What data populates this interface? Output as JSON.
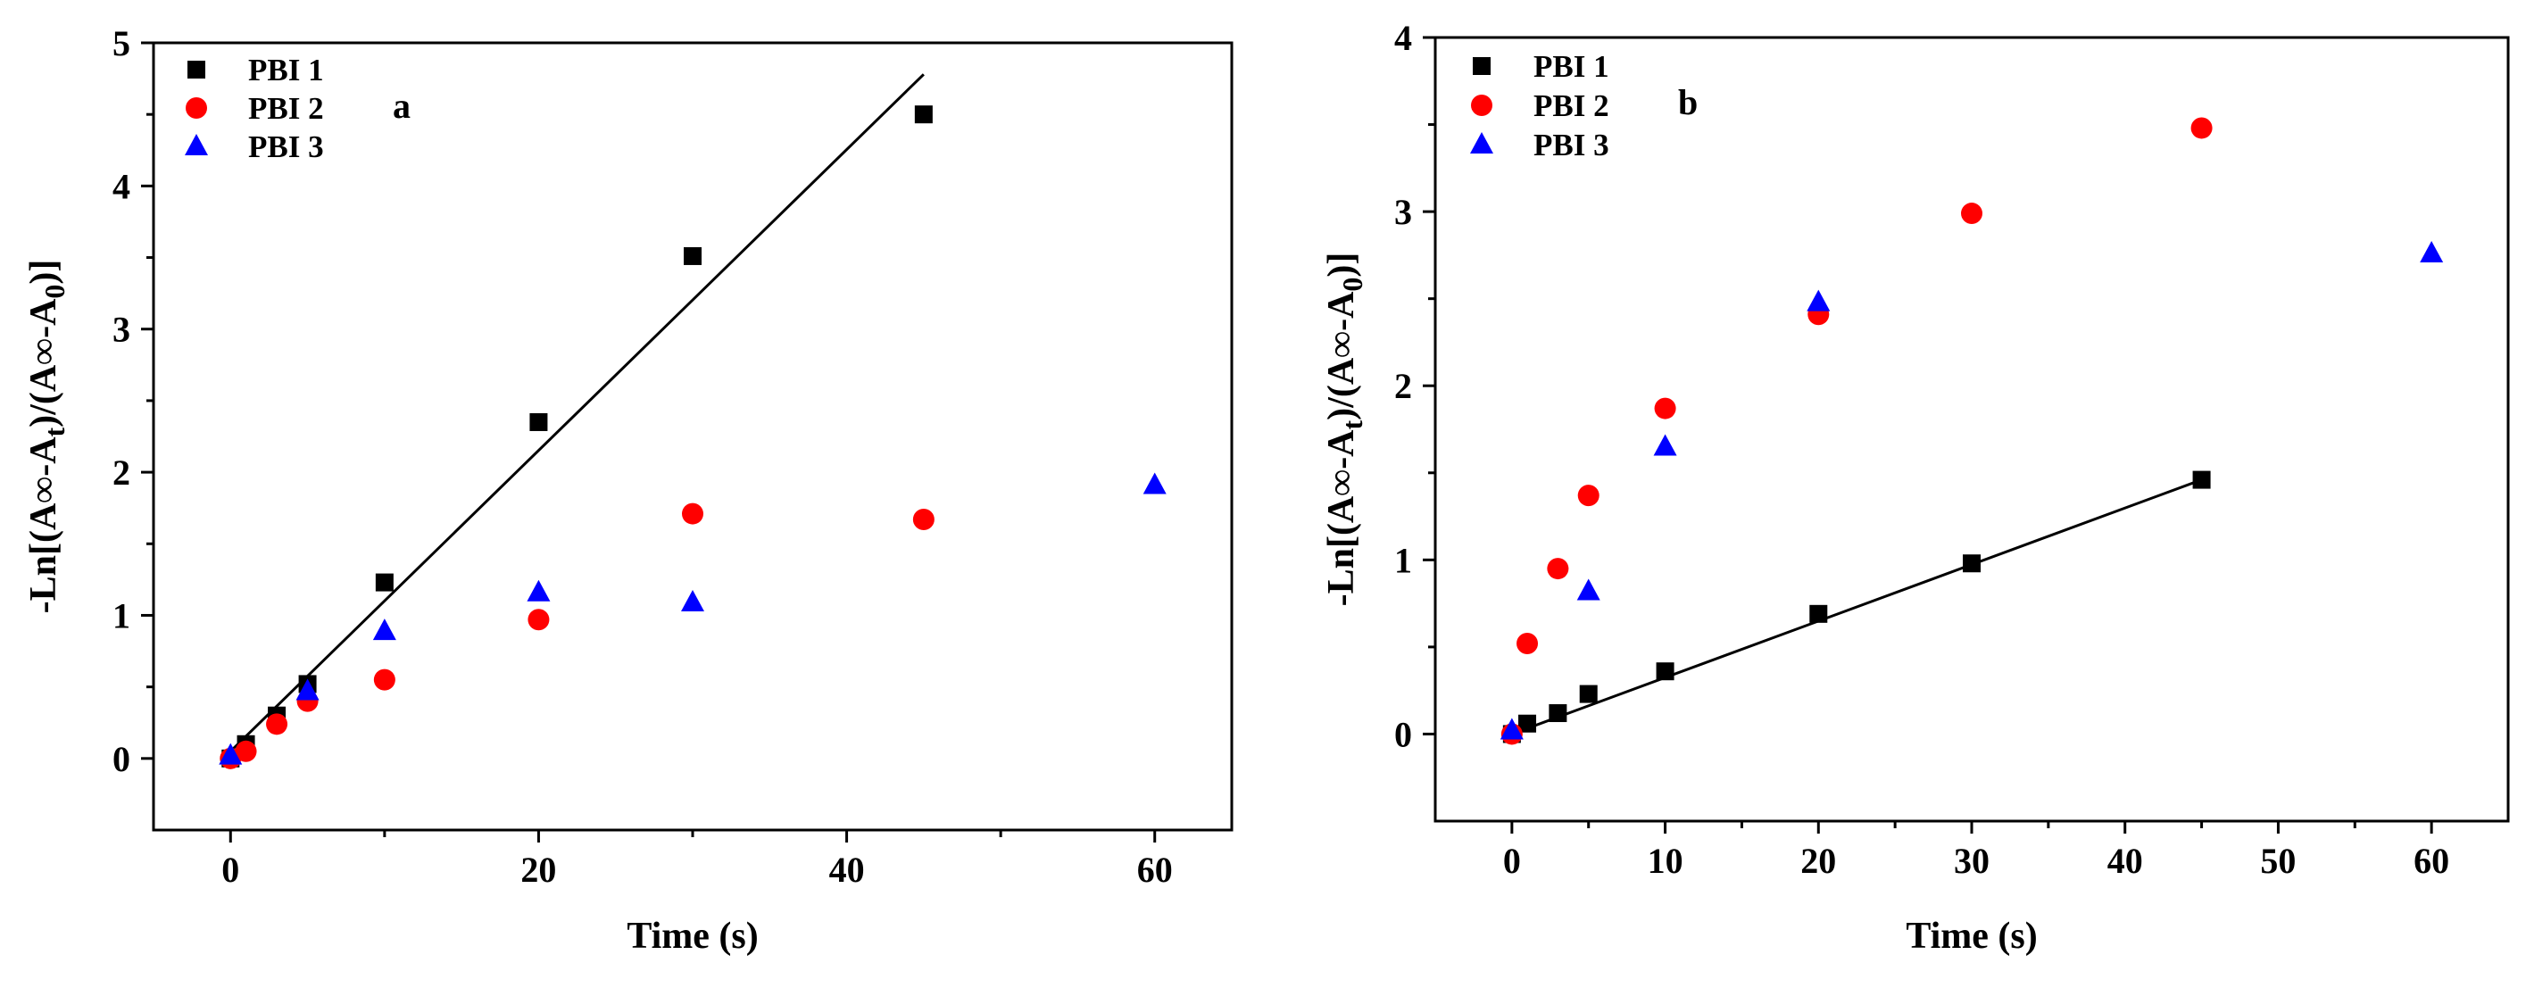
{
  "colors": {
    "PBI 1": "#000000",
    "PBI 2": "#ff0000",
    "PBI 3": "#0000ff",
    "axis": "#000000",
    "fit": "#000000"
  },
  "chart_data": [
    {
      "panel_label": "a",
      "type": "scatter",
      "title": "",
      "xlabel": "Time (s)",
      "ylabel": "-Ln[(A∞-At)/(A∞-A0)]",
      "ylabel_parts": {
        "pre": "-Ln[(A∞-A",
        "sub1": "t",
        "mid": ")/(A∞-A",
        "sub2": "0",
        "post": ")]"
      },
      "xlim": [
        -5,
        65
      ],
      "ylim": [
        -0.5,
        5
      ],
      "xticks": [
        0,
        20,
        40,
        60
      ],
      "xticks_minor": [
        10,
        30,
        50
      ],
      "yticks": [
        0,
        1,
        2,
        3,
        4,
        5
      ],
      "yticks_minor": [
        0.5,
        1.5,
        2.5,
        3.5,
        4.5
      ],
      "legend": [
        "PBI 1",
        "PBI 2",
        "PBI 3"
      ],
      "legend_position": "top-left",
      "series": [
        {
          "name": "PBI 1",
          "marker": "square",
          "x": [
            0,
            1,
            3,
            5,
            10,
            20,
            30,
            45
          ],
          "y": [
            0,
            0.1,
            0.3,
            0.52,
            1.23,
            2.35,
            3.51,
            4.5
          ]
        },
        {
          "name": "PBI 2",
          "marker": "circle",
          "x": [
            0,
            1,
            3,
            5,
            10,
            20,
            30,
            45
          ],
          "y": [
            0,
            0.05,
            0.24,
            0.4,
            0.55,
            0.97,
            1.71,
            1.67
          ]
        },
        {
          "name": "PBI 3",
          "marker": "triangle",
          "x": [
            0,
            5,
            10,
            20,
            30,
            60
          ],
          "y": [
            0.02,
            0.47,
            0.89,
            1.16,
            1.09,
            1.91
          ]
        }
      ],
      "fit_lines": [
        {
          "series": "PBI 1",
          "x": [
            0,
            45
          ],
          "y": [
            0.05,
            4.78
          ]
        }
      ]
    },
    {
      "panel_label": "b",
      "type": "scatter",
      "title": "",
      "xlabel": "Time (s)",
      "ylabel": "-Ln[(A∞-At)/(A∞-A0)]",
      "ylabel_parts": {
        "pre": "-Ln[(A∞-A",
        "sub1": "t",
        "mid": ")/(A∞-A",
        "sub2": "0",
        "post": ")]"
      },
      "xlim": [
        -5,
        65
      ],
      "ylim": [
        -0.5,
        4
      ],
      "xticks": [
        0,
        10,
        20,
        30,
        40,
        50,
        60
      ],
      "xticks_minor": [
        5,
        15,
        25,
        35,
        45,
        55
      ],
      "yticks": [
        0,
        1,
        2,
        3,
        4
      ],
      "yticks_minor": [
        0.5,
        1.5,
        2.5,
        3.5
      ],
      "legend": [
        "PBI 1",
        "PBI 2",
        "PBI 3"
      ],
      "legend_position": "top-left",
      "series": [
        {
          "name": "PBI 1",
          "marker": "square",
          "x": [
            0,
            1,
            3,
            5,
            10,
            20,
            30,
            45
          ],
          "y": [
            0,
            0.06,
            0.12,
            0.23,
            0.36,
            0.69,
            0.98,
            1.46
          ]
        },
        {
          "name": "PBI 2",
          "marker": "circle",
          "x": [
            0,
            1,
            3,
            5,
            10,
            20,
            30,
            45
          ],
          "y": [
            0,
            0.52,
            0.95,
            1.37,
            1.87,
            2.41,
            2.99,
            3.48
          ]
        },
        {
          "name": "PBI 3",
          "marker": "triangle",
          "x": [
            0,
            5,
            10,
            20,
            60
          ],
          "y": [
            0.02,
            0.82,
            1.65,
            2.48,
            2.76
          ]
        }
      ],
      "fit_lines": [
        {
          "series": "PBI 1",
          "x": [
            0,
            45
          ],
          "y": [
            0,
            1.46
          ]
        }
      ]
    }
  ]
}
